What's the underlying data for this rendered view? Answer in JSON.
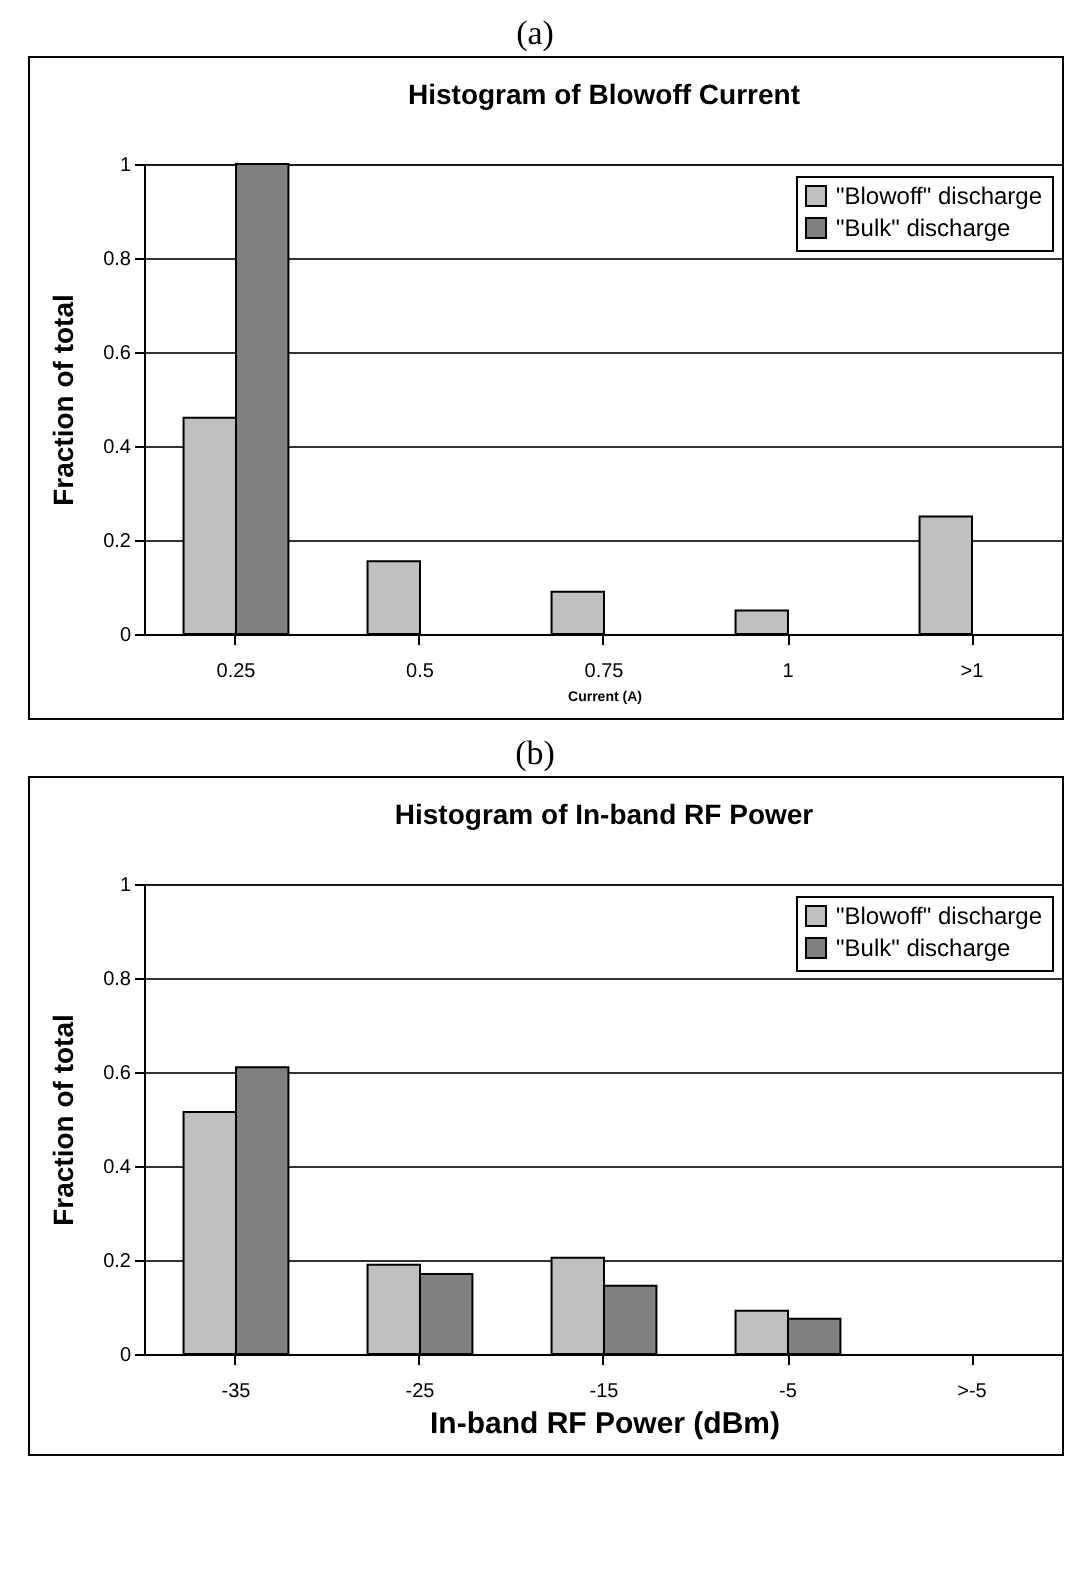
{
  "chart_data": [
    {
      "type": "bar",
      "title": "Histogram of Blowoff Current",
      "xlabel": "Current (A)",
      "ylabel": "Fraction of total",
      "annotations": [
        "(a)"
      ],
      "categories": [
        "0.25",
        "0.5",
        "0.75",
        "1",
        ">1"
      ],
      "series": [
        {
          "name": "\"Blowoff\" discharge",
          "color": "#c0c0c0",
          "values": [
            0.46,
            0.155,
            0.09,
            0.05,
            0.25
          ]
        },
        {
          "name": "\"Bulk\" discharge",
          "color": "#808080",
          "values": [
            1,
            0,
            0,
            0,
            0
          ]
        }
      ],
      "ylim": [
        0,
        1
      ],
      "yticks": [
        0,
        0.2,
        0.4,
        0.6,
        0.8,
        1
      ],
      "grid": "y",
      "legend": "top right"
    },
    {
      "type": "bar",
      "title": "Histogram of In-band RF Power",
      "xlabel": "In-band RF Power (dBm)",
      "ylabel": "Fraction of total",
      "annotations": [
        "(b)"
      ],
      "categories": [
        "-35",
        "-25",
        "-15",
        "-5",
        ">-5"
      ],
      "series": [
        {
          "name": "\"Blowoff\" discharge",
          "color": "#c0c0c0",
          "values": [
            0.515,
            0.19,
            0.205,
            0.092,
            0
          ]
        },
        {
          "name": "\"Bulk\" discharge",
          "color": "#808080",
          "values": [
            0.61,
            0.17,
            0.145,
            0.075,
            0
          ]
        }
      ],
      "ylim": [
        0,
        1
      ],
      "yticks": [
        0,
        0.2,
        0.4,
        0.6,
        0.8,
        1
      ],
      "grid": "y",
      "legend": "top right"
    }
  ]
}
